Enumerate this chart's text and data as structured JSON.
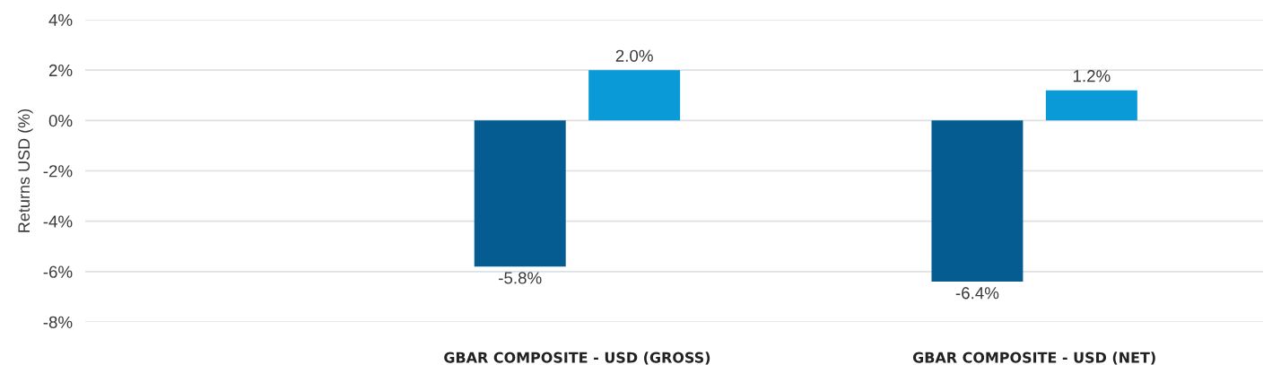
{
  "chart_data": {
    "type": "bar",
    "ylabel": "Returns USD (%)",
    "categories": [
      "GBAR COMPOSITE - USD (GROSS)",
      "GBAR COMPOSITE - USD (NET)"
    ],
    "series": [
      {
        "color": "#045c90",
        "values": [
          -5.8,
          -6.4
        ],
        "value_labels": [
          "-5.8%",
          "-6.4%"
        ]
      },
      {
        "color": "#0b9ad8",
        "values": [
          2.0,
          1.2
        ],
        "value_labels": [
          "2.0%",
          "1.2%"
        ]
      }
    ],
    "ylim": [
      -8,
      4
    ],
    "yticks": [
      {
        "value": -8,
        "label": "-8%"
      },
      {
        "value": -6,
        "label": "-6%"
      },
      {
        "value": -4,
        "label": "-4%"
      },
      {
        "value": -2,
        "label": "-2%"
      },
      {
        "value": 0,
        "label": "0%"
      },
      {
        "value": 2,
        "label": "2%"
      },
      {
        "value": 4,
        "label": "4%"
      }
    ],
    "grid": "y"
  }
}
